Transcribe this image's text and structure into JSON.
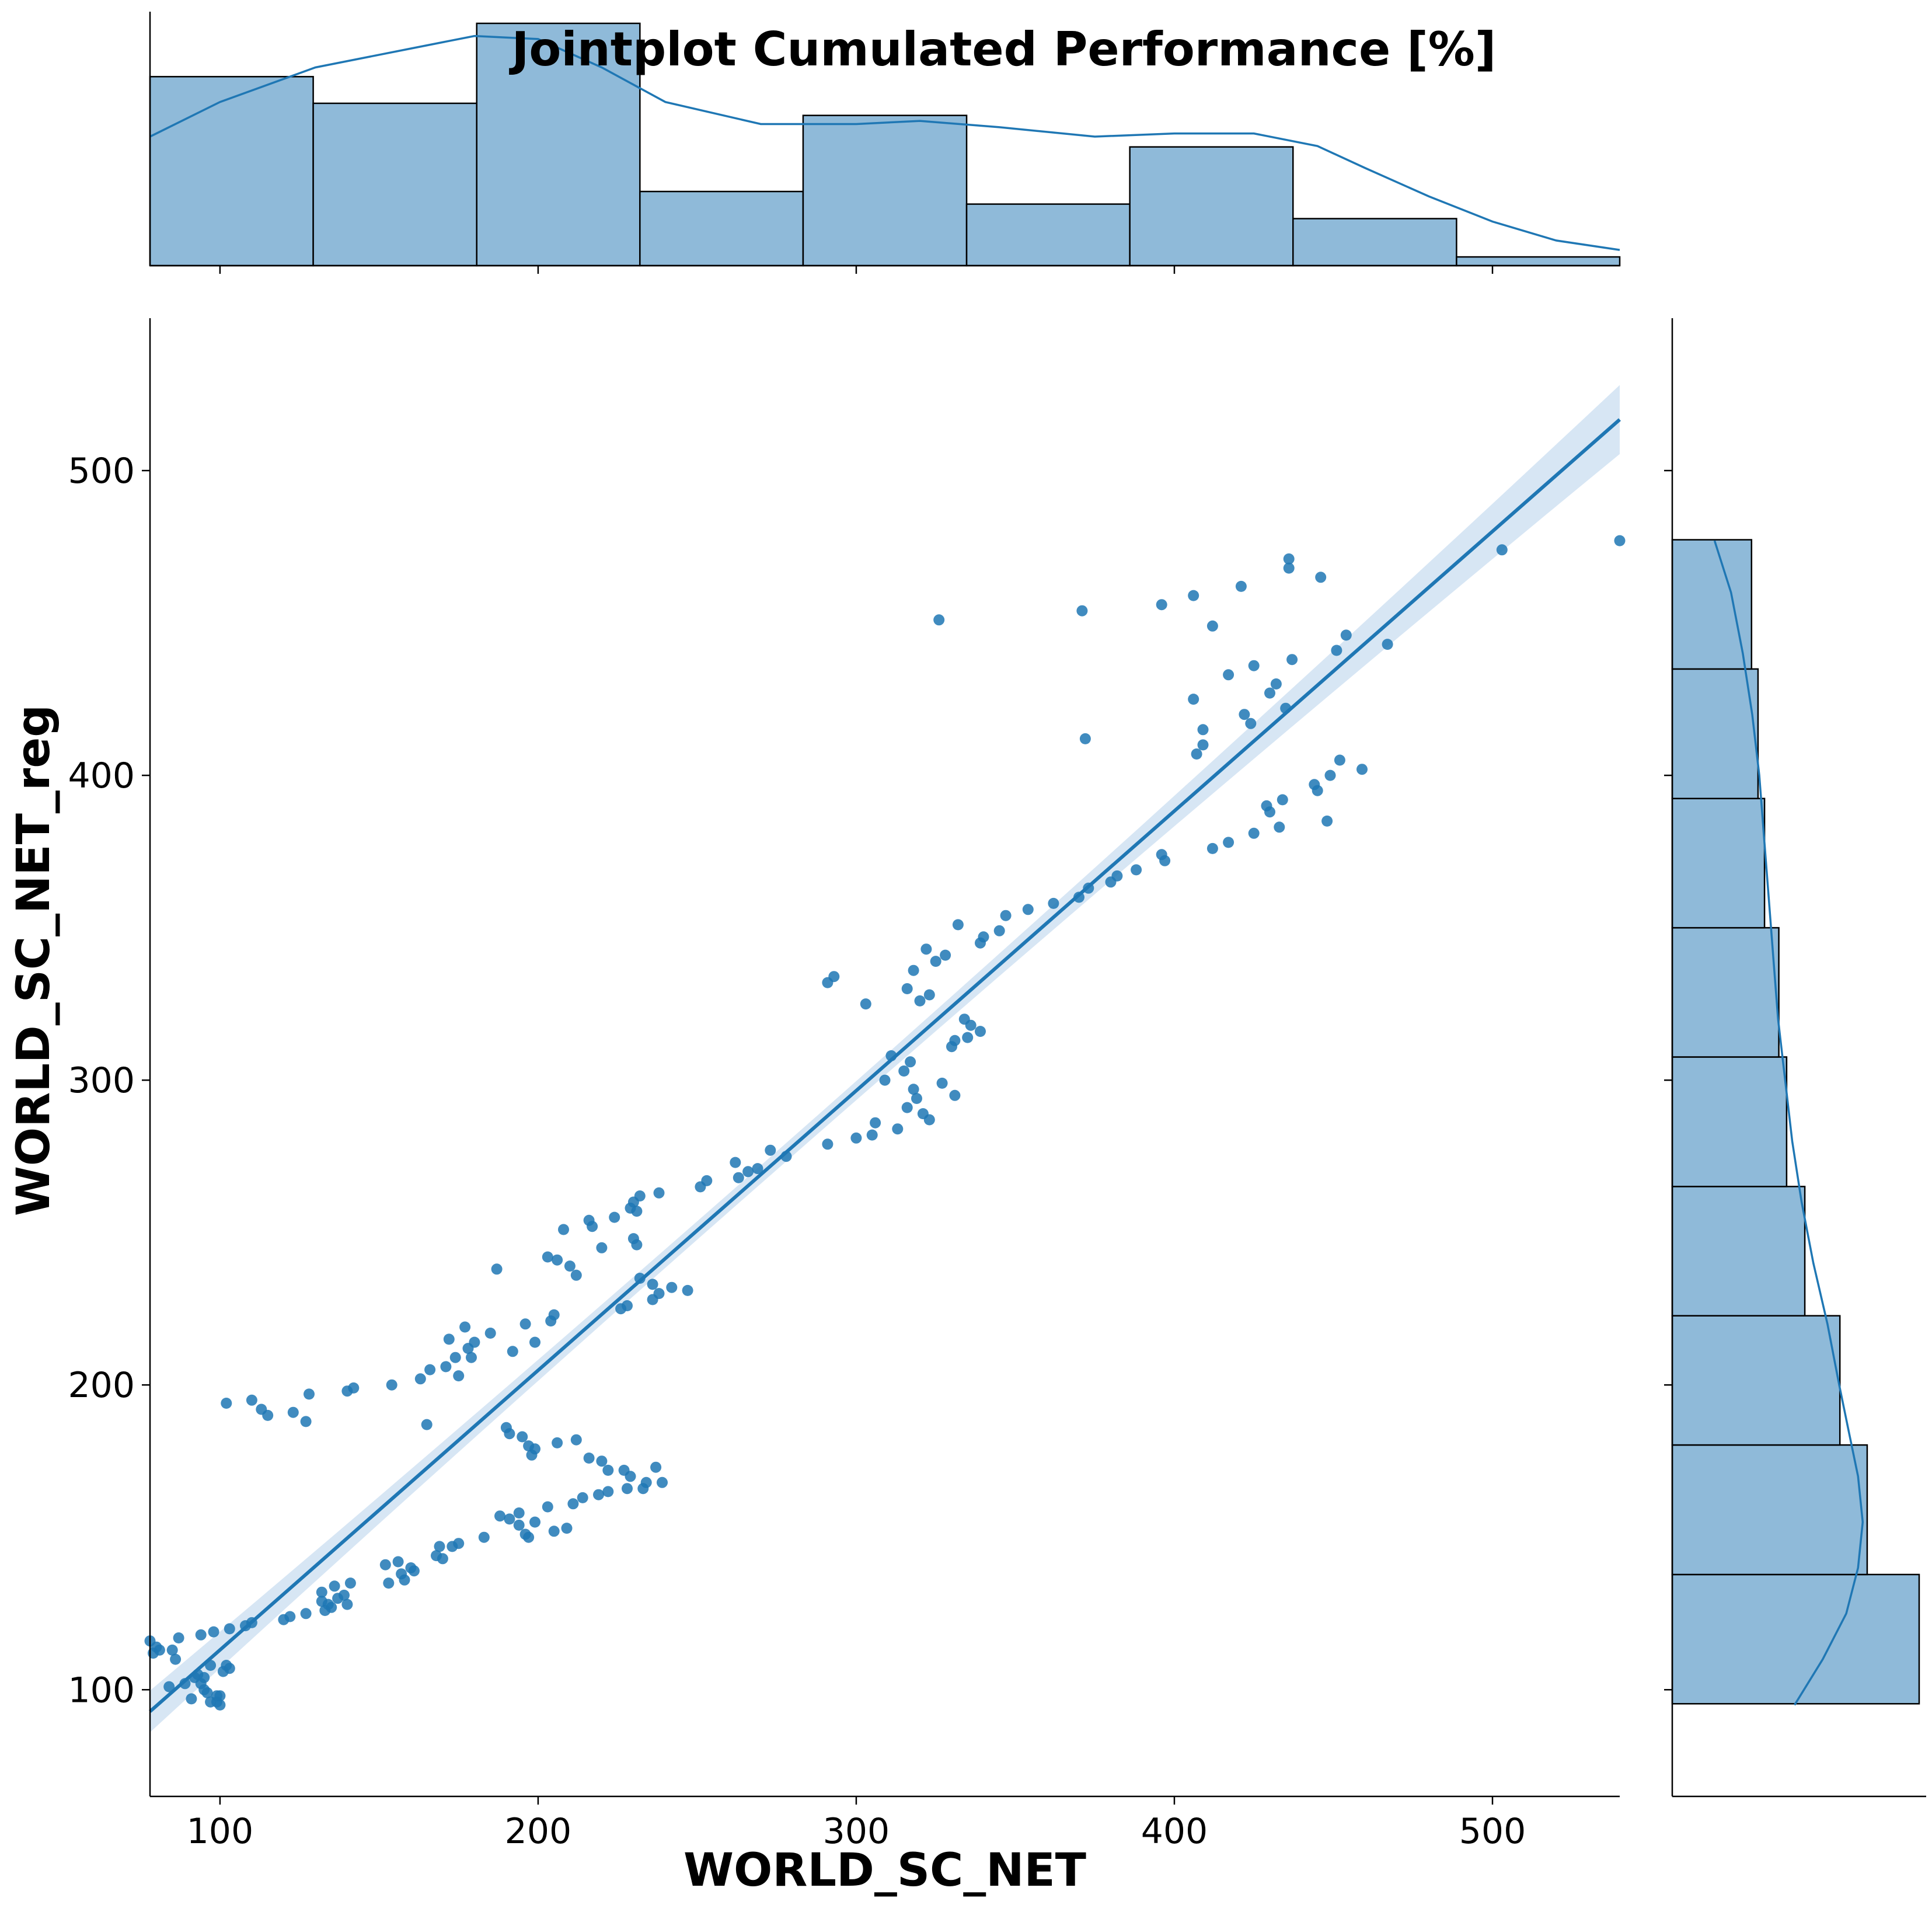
{
  "chart_data": {
    "type": "scatter",
    "title": "Jointplot Cumulated Performance [%]",
    "xlabel": "WORLD_SC_NET",
    "ylabel": "WORLD_SC_NET_reg",
    "xlim": [
      78,
      540
    ],
    "ylim": [
      65,
      550
    ],
    "xticks": [
      100,
      200,
      300,
      400,
      500
    ],
    "yticks": [
      100,
      200,
      300,
      400,
      500
    ],
    "grid": false,
    "colors": {
      "points": "#1f77b4",
      "line": "#1f77b4",
      "band": "#c6dbef",
      "bars": "#8fbad9",
      "edge": "#000000"
    },
    "regression": {
      "slope": 0.9175,
      "intercept": 21.3
    },
    "points": [
      [
        78,
        116
      ],
      [
        79,
        112
      ],
      [
        80,
        114
      ],
      [
        81,
        113
      ],
      [
        84,
        101
      ],
      [
        85,
        113
      ],
      [
        86,
        110
      ],
      [
        87,
        117
      ],
      [
        89,
        102
      ],
      [
        91,
        97
      ],
      [
        92,
        104
      ],
      [
        93,
        105
      ],
      [
        94,
        118
      ],
      [
        94,
        102
      ],
      [
        95,
        100
      ],
      [
        95,
        104
      ],
      [
        96,
        99
      ],
      [
        97,
        96
      ],
      [
        97,
        108
      ],
      [
        98,
        119
      ],
      [
        99,
        98
      ],
      [
        99,
        96
      ],
      [
        100,
        95
      ],
      [
        100,
        98
      ],
      [
        101,
        106
      ],
      [
        102,
        108
      ],
      [
        103,
        107
      ],
      [
        102,
        194
      ],
      [
        103,
        120
      ],
      [
        108,
        121
      ],
      [
        110,
        195
      ],
      [
        110,
        122
      ],
      [
        113,
        192
      ],
      [
        115,
        190
      ],
      [
        120,
        123
      ],
      [
        122,
        124
      ],
      [
        123,
        191
      ],
      [
        127,
        125
      ],
      [
        127,
        188
      ],
      [
        128,
        197
      ],
      [
        132,
        132
      ],
      [
        132,
        129
      ],
      [
        133,
        126
      ],
      [
        134,
        128
      ],
      [
        135,
        127
      ],
      [
        136,
        134
      ],
      [
        137,
        130
      ],
      [
        139,
        131
      ],
      [
        140,
        128
      ],
      [
        140,
        198
      ],
      [
        141,
        135
      ],
      [
        142,
        199
      ],
      [
        152,
        141
      ],
      [
        153,
        135
      ],
      [
        154,
        200
      ],
      [
        156,
        142
      ],
      [
        157,
        138
      ],
      [
        158,
        136
      ],
      [
        160,
        140
      ],
      [
        161,
        139
      ],
      [
        163,
        202
      ],
      [
        165,
        187
      ],
      [
        166,
        205
      ],
      [
        168,
        144
      ],
      [
        169,
        147
      ],
      [
        170,
        143
      ],
      [
        171,
        206
      ],
      [
        172,
        215
      ],
      [
        173,
        147
      ],
      [
        174,
        209
      ],
      [
        175,
        148
      ],
      [
        175,
        203
      ],
      [
        177,
        219
      ],
      [
        178,
        212
      ],
      [
        179,
        209
      ],
      [
        180,
        214
      ],
      [
        183,
        150
      ],
      [
        185,
        217
      ],
      [
        187,
        238
      ],
      [
        188,
        157
      ],
      [
        190,
        186
      ],
      [
        191,
        184
      ],
      [
        191,
        156
      ],
      [
        192,
        211
      ],
      [
        194,
        158
      ],
      [
        194,
        154
      ],
      [
        195,
        183
      ],
      [
        196,
        151
      ],
      [
        196,
        220
      ],
      [
        197,
        180
      ],
      [
        197,
        150
      ],
      [
        198,
        177
      ],
      [
        199,
        214
      ],
      [
        199,
        179
      ],
      [
        199,
        155
      ],
      [
        203,
        242
      ],
      [
        203,
        160
      ],
      [
        204,
        221
      ],
      [
        205,
        223
      ],
      [
        205,
        152
      ],
      [
        206,
        181
      ],
      [
        206,
        241
      ],
      [
        208,
        251
      ],
      [
        209,
        153
      ],
      [
        210,
        239
      ],
      [
        211,
        161
      ],
      [
        212,
        236
      ],
      [
        212,
        182
      ],
      [
        214,
        163
      ],
      [
        216,
        176
      ],
      [
        216,
        254
      ],
      [
        217,
        252
      ],
      [
        219,
        164
      ],
      [
        220,
        175
      ],
      [
        220,
        245
      ],
      [
        222,
        165
      ],
      [
        222,
        172
      ],
      [
        224,
        255
      ],
      [
        226,
        225
      ],
      [
        227,
        172
      ],
      [
        228,
        226
      ],
      [
        228,
        166
      ],
      [
        229,
        258
      ],
      [
        229,
        170
      ],
      [
        230,
        260
      ],
      [
        230,
        248
      ],
      [
        231,
        246
      ],
      [
        231,
        257
      ],
      [
        232,
        262
      ],
      [
        232,
        235
      ],
      [
        233,
        166
      ],
      [
        234,
        168
      ],
      [
        236,
        228
      ],
      [
        236,
        233
      ],
      [
        237,
        173
      ],
      [
        238,
        230
      ],
      [
        238,
        263
      ],
      [
        239,
        168
      ],
      [
        242,
        232
      ],
      [
        247,
        231
      ],
      [
        251,
        265
      ],
      [
        253,
        267
      ],
      [
        262,
        273
      ],
      [
        263,
        268
      ],
      [
        266,
        270
      ],
      [
        269,
        271
      ],
      [
        273,
        277
      ],
      [
        278,
        275
      ],
      [
        291,
        279
      ],
      [
        291,
        332
      ],
      [
        293,
        334
      ],
      [
        300,
        281
      ],
      [
        303,
        325
      ],
      [
        305,
        282
      ],
      [
        306,
        286
      ],
      [
        309,
        300
      ],
      [
        311,
        308
      ],
      [
        313,
        284
      ],
      [
        315,
        303
      ],
      [
        316,
        330
      ],
      [
        316,
        291
      ],
      [
        317,
        306
      ],
      [
        318,
        336
      ],
      [
        318,
        297
      ],
      [
        319,
        294
      ],
      [
        320,
        326
      ],
      [
        321,
        289
      ],
      [
        322,
        343
      ],
      [
        323,
        287
      ],
      [
        323,
        328
      ],
      [
        325,
        339
      ],
      [
        326,
        451
      ],
      [
        327,
        299
      ],
      [
        328,
        341
      ],
      [
        330,
        311
      ],
      [
        331,
        313
      ],
      [
        331,
        295
      ],
      [
        332,
        351
      ],
      [
        334,
        320
      ],
      [
        335,
        314
      ],
      [
        336,
        318
      ],
      [
        339,
        316
      ],
      [
        339,
        345
      ],
      [
        340,
        347
      ],
      [
        345,
        349
      ],
      [
        347,
        354
      ],
      [
        354,
        356
      ],
      [
        362,
        358
      ],
      [
        370,
        360
      ],
      [
        371,
        454
      ],
      [
        372,
        412
      ],
      [
        373,
        363
      ],
      [
        380,
        365
      ],
      [
        382,
        367
      ],
      [
        388,
        369
      ],
      [
        396,
        456
      ],
      [
        396,
        374
      ],
      [
        397,
        372
      ],
      [
        406,
        425
      ],
      [
        406,
        459
      ],
      [
        407,
        407
      ],
      [
        409,
        415
      ],
      [
        409,
        410
      ],
      [
        412,
        449
      ],
      [
        412,
        376
      ],
      [
        417,
        378
      ],
      [
        417,
        433
      ],
      [
        421,
        462
      ],
      [
        422,
        420
      ],
      [
        424,
        417
      ],
      [
        425,
        436
      ],
      [
        425,
        381
      ],
      [
        429,
        390
      ],
      [
        430,
        388
      ],
      [
        430,
        427
      ],
      [
        432,
        430
      ],
      [
        433,
        383
      ],
      [
        434,
        392
      ],
      [
        435,
        422
      ],
      [
        436,
        471
      ],
      [
        436,
        468
      ],
      [
        437,
        438
      ],
      [
        444,
        397
      ],
      [
        445,
        395
      ],
      [
        446,
        465
      ],
      [
        448,
        385
      ],
      [
        449,
        400
      ],
      [
        451,
        441
      ],
      [
        452,
        405
      ],
      [
        454,
        446
      ],
      [
        459,
        402
      ],
      [
        467,
        443
      ],
      [
        503,
        474
      ],
      [
        540,
        477
      ]
    ],
    "x_histogram": {
      "edges": [
        78,
        129.3,
        180.7,
        232,
        283.3,
        334.7,
        386,
        437.3,
        488.7,
        540
      ],
      "counts": [
        39,
        33.5,
        50,
        15.3,
        31,
        12.7,
        24.5,
        9.7,
        1.8
      ],
      "kde": [
        [
          78,
          0.41
        ],
        [
          100,
          0.52
        ],
        [
          130,
          0.63
        ],
        [
          160,
          0.69
        ],
        [
          180,
          0.73
        ],
        [
          200,
          0.72
        ],
        [
          220,
          0.63
        ],
        [
          240,
          0.52
        ],
        [
          270,
          0.45
        ],
        [
          300,
          0.45
        ],
        [
          320,
          0.46
        ],
        [
          345,
          0.44
        ],
        [
          375,
          0.41
        ],
        [
          400,
          0.42
        ],
        [
          425,
          0.42
        ],
        [
          445,
          0.38
        ],
        [
          460,
          0.31
        ],
        [
          480,
          0.22
        ],
        [
          500,
          0.14
        ],
        [
          520,
          0.08
        ],
        [
          540,
          0.05
        ]
      ]
    },
    "y_histogram": {
      "edges": [
        95.4,
        137.8,
        180.3,
        222.7,
        265.1,
        307.6,
        350,
        392.4,
        434.9,
        477.3
      ],
      "counts": [
        19,
        15,
        12.9,
        10.2,
        8.8,
        8.2,
        7.1,
        6.6,
        6.1
      ],
      "kde": [
        [
          95,
          0.52
        ],
        [
          110,
          0.64
        ],
        [
          125,
          0.74
        ],
        [
          140,
          0.79
        ],
        [
          155,
          0.81
        ],
        [
          170,
          0.79
        ],
        [
          185,
          0.75
        ],
        [
          200,
          0.71
        ],
        [
          220,
          0.66
        ],
        [
          240,
          0.6
        ],
        [
          260,
          0.55
        ],
        [
          280,
          0.51
        ],
        [
          300,
          0.48
        ],
        [
          320,
          0.45
        ],
        [
          340,
          0.43
        ],
        [
          360,
          0.41
        ],
        [
          380,
          0.39
        ],
        [
          400,
          0.37
        ],
        [
          420,
          0.34
        ],
        [
          440,
          0.3
        ],
        [
          460,
          0.25
        ],
        [
          477,
          0.18
        ]
      ]
    }
  }
}
